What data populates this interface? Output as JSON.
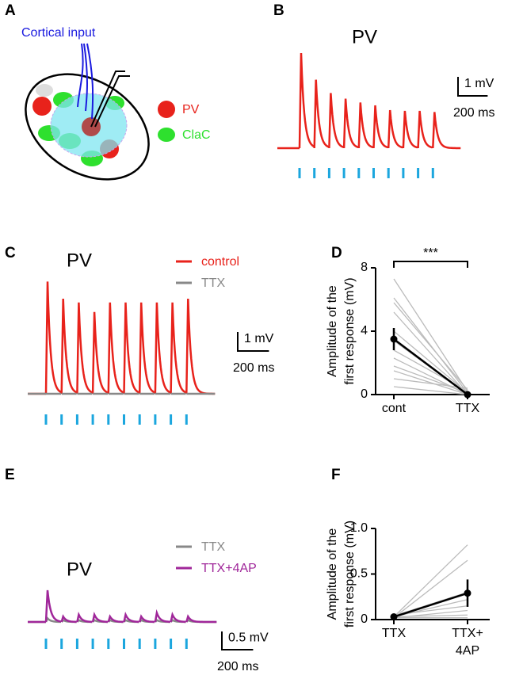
{
  "diagram": {
    "panel": "A",
    "input_label": "Cortical input",
    "legend": [
      "PV",
      "ClaC"
    ]
  },
  "chart_data": [
    {
      "type": "trace",
      "panel": "B",
      "title": "PV",
      "series": [
        {
          "color": "#e8221b",
          "values": [
            5.0,
            3.6,
            2.9,
            2.6,
            2.4,
            2.25,
            2.0,
            1.96,
            1.96,
            1.9
          ]
        }
      ],
      "scalebar": {
        "y": {
          "value": 1,
          "label": "1 mV"
        },
        "x": {
          "value": 200,
          "label": "200 ms"
        }
      }
    },
    {
      "type": "trace",
      "panel": "C",
      "title": "PV",
      "series": [
        {
          "name": "control",
          "color": "#e8221b",
          "values": [
            5.9,
            5.0,
            4.8,
            4.3,
            4.8,
            4.8,
            4.8,
            4.8,
            4.8,
            5.0
          ]
        },
        {
          "name": "TTX",
          "color": "#888888",
          "values": [
            0,
            0,
            0,
            0,
            0,
            0,
            0,
            0,
            0,
            0
          ]
        }
      ],
      "scalebar": {
        "y": {
          "value": 1,
          "label": "1 mV"
        },
        "x": {
          "value": 200,
          "label": "200 ms"
        }
      }
    },
    {
      "type": "paired",
      "panel": "D",
      "ylabel": [
        "Amplitude of the",
        "first response (mV)"
      ],
      "categories": [
        [
          "cont"
        ],
        [
          "TTX"
        ]
      ],
      "ylim": [
        0,
        8
      ],
      "yticks": [
        0,
        4,
        8
      ],
      "significance": "***",
      "individual": {
        "color": "#bbbbbb",
        "values": [
          [
            7.3,
            0.2
          ],
          [
            6.1,
            0.1
          ],
          [
            5.8,
            0.3
          ],
          [
            5.2,
            0
          ],
          [
            4.0,
            0.1
          ],
          [
            3.4,
            0
          ],
          [
            2.8,
            0.2
          ],
          [
            2.3,
            0
          ],
          [
            1.8,
            0.1
          ],
          [
            1.5,
            0
          ],
          [
            1.0,
            0.4
          ],
          [
            0.5,
            0
          ]
        ]
      },
      "mean": {
        "color": "#000000",
        "values": [
          3.5,
          0
        ],
        "errors": [
          0.7,
          0
        ]
      }
    },
    {
      "type": "trace",
      "panel": "E",
      "title": "PV",
      "series": [
        {
          "name": "TTX",
          "color": "#888888",
          "values": [
            0.1,
            0.05,
            0.05,
            0.05,
            0.05,
            0.05,
            0.05,
            0.05,
            0.05,
            0.05
          ]
        },
        {
          "name": "TTX+4AP",
          "color": "#a0279a",
          "values": [
            0.87,
            0.15,
            0.2,
            0.2,
            0.15,
            0.2,
            0.15,
            0.25,
            0.2,
            0.15
          ]
        }
      ],
      "scalebar": {
        "y": {
          "value": 0.5,
          "label": "0.5 mV"
        },
        "x": {
          "value": 200,
          "label": "200 ms"
        }
      }
    },
    {
      "type": "paired",
      "panel": "F",
      "ylabel": [
        "Amplitude of the",
        "first response (mV)"
      ],
      "categories": [
        [
          "TTX"
        ],
        [
          "TTX+",
          "4AP"
        ]
      ],
      "ylim": [
        0,
        1
      ],
      "yticks": [
        0,
        0.5,
        {
          "value": 1,
          "label": "1.0"
        }
      ],
      "individual": {
        "color": "#bbbbbb",
        "values": [
          [
            0.03,
            0.82
          ],
          [
            0.02,
            0.65
          ],
          [
            0.04,
            0.3
          ],
          [
            0.03,
            0.22
          ],
          [
            0.05,
            0.15
          ],
          [
            0.02,
            0.1
          ],
          [
            0.03,
            0.05
          ],
          [
            0.02,
            0.02
          ]
        ]
      },
      "mean": {
        "color": "#000000",
        "values": [
          0.03,
          0.29
        ],
        "errors": [
          0,
          0.15
        ]
      }
    }
  ]
}
